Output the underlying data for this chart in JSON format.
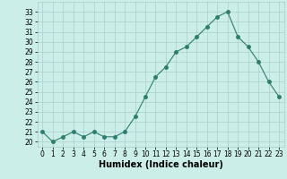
{
  "x": [
    0,
    1,
    2,
    3,
    4,
    5,
    6,
    7,
    8,
    9,
    10,
    11,
    12,
    13,
    14,
    15,
    16,
    17,
    18,
    19,
    20,
    21,
    22,
    23
  ],
  "y": [
    21.0,
    20.0,
    20.5,
    21.0,
    20.5,
    21.0,
    20.5,
    20.5,
    21.0,
    22.5,
    24.5,
    26.5,
    27.5,
    29.0,
    29.5,
    30.5,
    31.5,
    32.5,
    33.0,
    30.5,
    29.5,
    28.0,
    26.0,
    24.5
  ],
  "xlabel": "Humidex (Indice chaleur)",
  "ylim": [
    19.5,
    34.0
  ],
  "xlim": [
    -0.5,
    23.5
  ],
  "yticks": [
    20,
    21,
    22,
    23,
    24,
    25,
    26,
    27,
    28,
    29,
    30,
    31,
    32,
    33
  ],
  "xticks": [
    0,
    1,
    2,
    3,
    4,
    5,
    6,
    7,
    8,
    9,
    10,
    11,
    12,
    13,
    14,
    15,
    16,
    17,
    18,
    19,
    20,
    21,
    22,
    23
  ],
  "line_color": "#2e7d6e",
  "marker_size": 2.5,
  "bg_color": "#cceee8",
  "grid_color": "#aacccc",
  "tick_fontsize": 5.5,
  "xlabel_fontsize": 7.0
}
